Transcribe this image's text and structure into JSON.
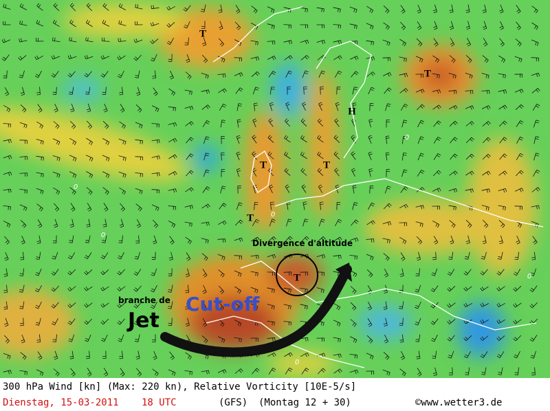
{
  "map": {
    "lows": [
      "T",
      "T",
      "T",
      "T",
      "T",
      "T"
    ],
    "high": "H",
    "contour_labels": [
      "0",
      "0",
      "0",
      "0",
      "0",
      "0"
    ],
    "annotations": {
      "divergence": "Divergence d'altitude",
      "branch": "branche de",
      "jet": "Jet",
      "cutoff": "Cut-off"
    }
  },
  "footer": {
    "title": "300 hPa Wind [kn] (Max: 220 kn), Relative Vorticity [10E-5/s]",
    "date": "Dienstag, 15-03-2011",
    "time": "18 UTC",
    "model": "(GFS)",
    "run": "(Montag 12 + 30)",
    "credit": "©www.wetter3.de"
  }
}
